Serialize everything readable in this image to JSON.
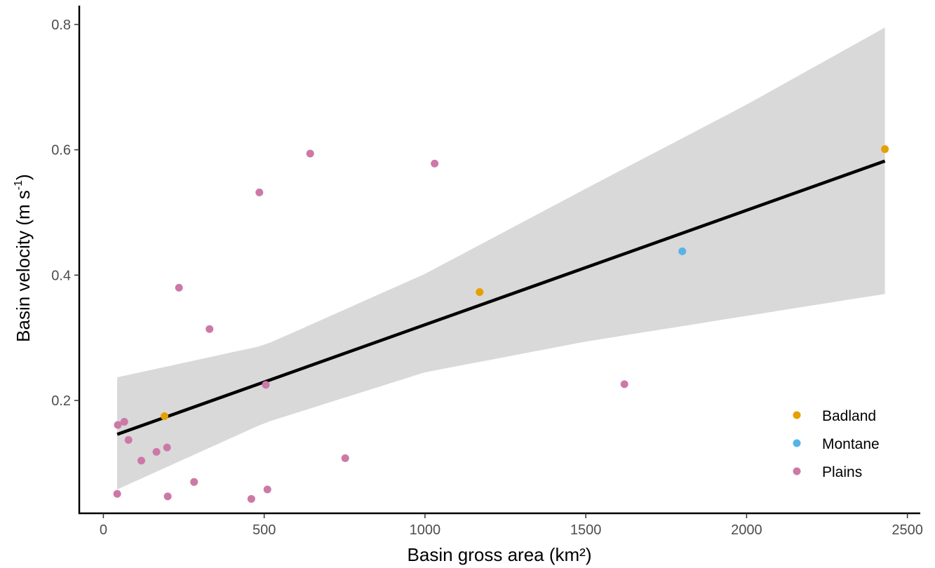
{
  "chart_data": {
    "type": "scatter",
    "title": "",
    "xlabel": "Basin gross area (km²)",
    "ylabel_main": "Basin velocity (m s",
    "ylabel_sup": "-1",
    "ylabel_close": ")",
    "xlim": [
      -75,
      2540
    ],
    "ylim": [
      0.02,
      0.83
    ],
    "x_ticks": [
      0,
      500,
      1000,
      1500,
      2000,
      2500
    ],
    "x_tick_labels": [
      "0",
      "500",
      "1000",
      "1500",
      "2000",
      "2500"
    ],
    "y_ticks": [
      0.2,
      0.4,
      0.6,
      0.8
    ],
    "y_tick_labels": [
      "0.2",
      "0.4",
      "0.6",
      "0.8"
    ],
    "grid": false,
    "legend_position": "bottom-right",
    "colors": {
      "Badland": "#E69F00",
      "Montane": "#56B4E9",
      "Plains": "#CC79A7",
      "fit_line": "#000000",
      "confidence_band": "#d9d9d9"
    },
    "series": [
      {
        "name": "Badland",
        "points": [
          {
            "x": 190,
            "y": 0.175
          },
          {
            "x": 1170,
            "y": 0.373
          },
          {
            "x": 2430,
            "y": 0.601
          }
        ]
      },
      {
        "name": "Montane",
        "points": [
          {
            "x": 1800,
            "y": 0.438
          }
        ]
      },
      {
        "name": "Plains",
        "points": [
          {
            "x": 45,
            "y": 0.161
          },
          {
            "x": 65,
            "y": 0.166
          },
          {
            "x": 78,
            "y": 0.137
          },
          {
            "x": 118,
            "y": 0.104
          },
          {
            "x": 165,
            "y": 0.118
          },
          {
            "x": 198,
            "y": 0.125
          },
          {
            "x": 43,
            "y": 0.051
          },
          {
            "x": 200,
            "y": 0.047
          },
          {
            "x": 235,
            "y": 0.38
          },
          {
            "x": 282,
            "y": 0.07
          },
          {
            "x": 330,
            "y": 0.314
          },
          {
            "x": 460,
            "y": 0.043
          },
          {
            "x": 485,
            "y": 0.532
          },
          {
            "x": 505,
            "y": 0.225
          },
          {
            "x": 510,
            "y": 0.058
          },
          {
            "x": 643,
            "y": 0.594
          },
          {
            "x": 752,
            "y": 0.108
          },
          {
            "x": 1030,
            "y": 0.578
          },
          {
            "x": 1620,
            "y": 0.226
          }
        ]
      }
    ],
    "fit": {
      "type": "linear",
      "x_range": [
        43,
        2430
      ],
      "y_start": 0.146,
      "y_end": 0.582,
      "band": [
        {
          "x": 43,
          "lower": 0.058,
          "upper": 0.237
        },
        {
          "x": 500,
          "lower": 0.164,
          "upper": 0.288
        },
        {
          "x": 1000,
          "lower": 0.245,
          "upper": 0.402
        },
        {
          "x": 1500,
          "lower": 0.294,
          "upper": 0.538
        },
        {
          "x": 2000,
          "lower": 0.335,
          "upper": 0.672
        },
        {
          "x": 2430,
          "lower": 0.37,
          "upper": 0.795
        }
      ]
    }
  }
}
